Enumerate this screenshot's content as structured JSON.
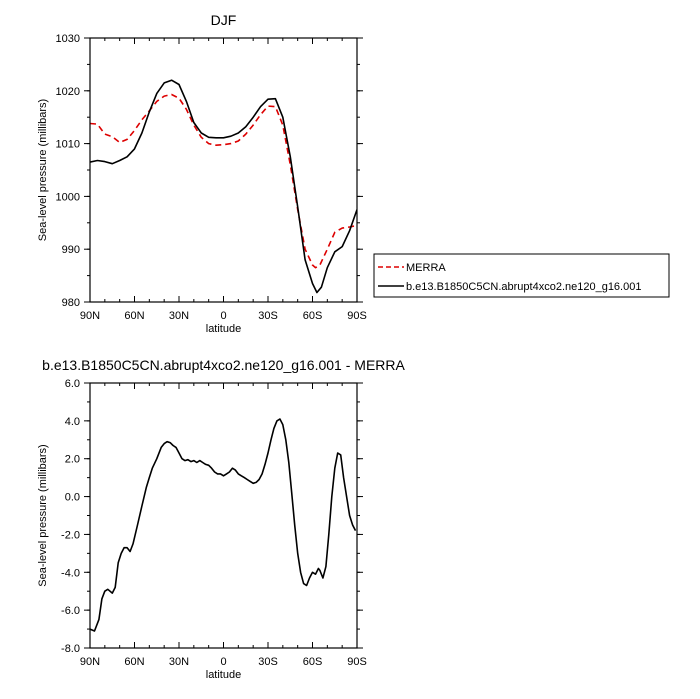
{
  "chart_data": [
    {
      "type": "line",
      "title": "DJF",
      "xlabel": "latitude",
      "ylabel": "Sea-level pressure (millibars)",
      "x_unit": "degrees latitude (positive = N, negative = S)",
      "xlim": [
        90,
        -90
      ],
      "ylim": [
        980,
        1030
      ],
      "xticks": [
        90,
        60,
        30,
        0,
        -30,
        -60,
        -90
      ],
      "xticklabels": [
        "90N",
        "60N",
        "30N",
        "0",
        "30S",
        "60S",
        "90S"
      ],
      "yticks": [
        980,
        990,
        1000,
        1010,
        1020,
        1030
      ],
      "yticklabels": [
        "980",
        "990",
        "1000",
        "1010",
        "1020",
        "1030"
      ],
      "legend_position": "right",
      "series": [
        {
          "name": "MERRA",
          "color": "#dd0000",
          "dash": "dashed",
          "x": [
            90,
            85,
            80,
            75,
            70,
            65,
            60,
            55,
            50,
            45,
            40,
            35,
            30,
            25,
            20,
            15,
            10,
            5,
            0,
            -5,
            -10,
            -15,
            -20,
            -25,
            -30,
            -35,
            -40,
            -45,
            -50,
            -55,
            -60,
            -62,
            -65,
            -70,
            -75,
            -80,
            -85,
            -90
          ],
          "y": [
            1013.8,
            1013.7,
            1011.8,
            1011.3,
            1010.2,
            1010.8,
            1012.5,
            1014.5,
            1016.2,
            1018.0,
            1019.0,
            1019.3,
            1018.6,
            1016.5,
            1013.5,
            1011.2,
            1010.0,
            1009.7,
            1009.8,
            1010.0,
            1010.5,
            1011.8,
            1013.5,
            1015.5,
            1017.1,
            1017.0,
            1013.5,
            1006.0,
            997.5,
            990.0,
            987.0,
            986.5,
            987.0,
            990.0,
            993.2,
            994.0,
            994.2,
            994.5
          ]
        },
        {
          "name": "b.e13.B1850C5CN.abrupt4xco2.ne120_g16.001",
          "color": "#000000",
          "dash": "solid",
          "x": [
            90,
            85,
            80,
            75,
            70,
            65,
            60,
            55,
            50,
            45,
            40,
            35,
            30,
            25,
            20,
            15,
            10,
            5,
            0,
            -5,
            -10,
            -15,
            -20,
            -25,
            -30,
            -35,
            -40,
            -45,
            -50,
            -55,
            -60,
            -63,
            -66,
            -70,
            -75,
            -80,
            -85,
            -90
          ],
          "y": [
            1006.5,
            1006.8,
            1006.6,
            1006.2,
            1006.8,
            1007.5,
            1009.0,
            1012.0,
            1016.0,
            1019.5,
            1021.5,
            1022.0,
            1021.2,
            1018.0,
            1014.0,
            1012.0,
            1011.2,
            1011.1,
            1011.1,
            1011.4,
            1012.0,
            1013.2,
            1015.0,
            1017.0,
            1018.4,
            1018.5,
            1015.0,
            1007.5,
            998.0,
            988.0,
            983.5,
            981.8,
            982.8,
            986.5,
            989.5,
            990.5,
            993.5,
            997.5
          ]
        }
      ]
    },
    {
      "type": "line",
      "title": "b.e13.B1850C5CN.abrupt4xco2.ne120_g16.001 - MERRA",
      "xlabel": "latitude",
      "ylabel": "Sea-level pressure (millibars)",
      "x_unit": "degrees latitude (positive = N, negative = S)",
      "xlim": [
        90,
        -90
      ],
      "ylim": [
        -8,
        6
      ],
      "xticks": [
        90,
        60,
        30,
        0,
        -30,
        -60,
        -90
      ],
      "xticklabels": [
        "90N",
        "60N",
        "30N",
        "0",
        "30S",
        "60S",
        "90S"
      ],
      "yticks": [
        -8,
        -6,
        -4,
        -2,
        0,
        2,
        4,
        6
      ],
      "yticklabels": [
        "-8.0",
        "-6.0",
        "-4.0",
        "-2.0",
        "0.0",
        "2.0",
        "4.0",
        "6.0"
      ],
      "series": [
        {
          "color": "#000000",
          "dash": "solid",
          "x": [
            90,
            87,
            84,
            82,
            80,
            78,
            75,
            73,
            71,
            69,
            67,
            65,
            63,
            61,
            58,
            55,
            52,
            50,
            48,
            45,
            42,
            40,
            38,
            36,
            34,
            32,
            30,
            28,
            26,
            24,
            22,
            20,
            18,
            16,
            14,
            12,
            10,
            8,
            6,
            4,
            2,
            0,
            -2,
            -4,
            -6,
            -8,
            -10,
            -12,
            -14,
            -16,
            -18,
            -20,
            -22,
            -24,
            -26,
            -28,
            -30,
            -32,
            -34,
            -36,
            -38,
            -40,
            -42,
            -44,
            -46,
            -48,
            -50,
            -52,
            -54,
            -56,
            -58,
            -60,
            -62,
            -64,
            -65,
            -67,
            -69,
            -71,
            -73,
            -75,
            -77,
            -79,
            -81,
            -83,
            -85,
            -87,
            -89
          ],
          "y": [
            -7.0,
            -7.1,
            -6.5,
            -5.4,
            -5.0,
            -4.9,
            -5.1,
            -4.8,
            -3.5,
            -3.0,
            -2.7,
            -2.7,
            -2.9,
            -2.5,
            -1.5,
            -0.5,
            0.5,
            1.0,
            1.5,
            2.0,
            2.6,
            2.8,
            2.9,
            2.85,
            2.7,
            2.6,
            2.3,
            2.0,
            1.9,
            1.95,
            1.85,
            1.9,
            1.8,
            1.9,
            1.8,
            1.7,
            1.65,
            1.5,
            1.3,
            1.2,
            1.2,
            1.1,
            1.2,
            1.3,
            1.5,
            1.4,
            1.2,
            1.1,
            1.0,
            0.9,
            0.8,
            0.7,
            0.75,
            0.9,
            1.2,
            1.7,
            2.3,
            3.0,
            3.6,
            4.0,
            4.1,
            3.8,
            3.0,
            1.8,
            0.2,
            -1.5,
            -3.0,
            -4.0,
            -4.6,
            -4.7,
            -4.3,
            -4.0,
            -4.1,
            -3.8,
            -3.9,
            -4.3,
            -3.7,
            -2.0,
            0.0,
            1.5,
            2.3,
            2.2,
            1.0,
            0.0,
            -1.0,
            -1.5,
            -1.8
          ]
        }
      ]
    }
  ]
}
